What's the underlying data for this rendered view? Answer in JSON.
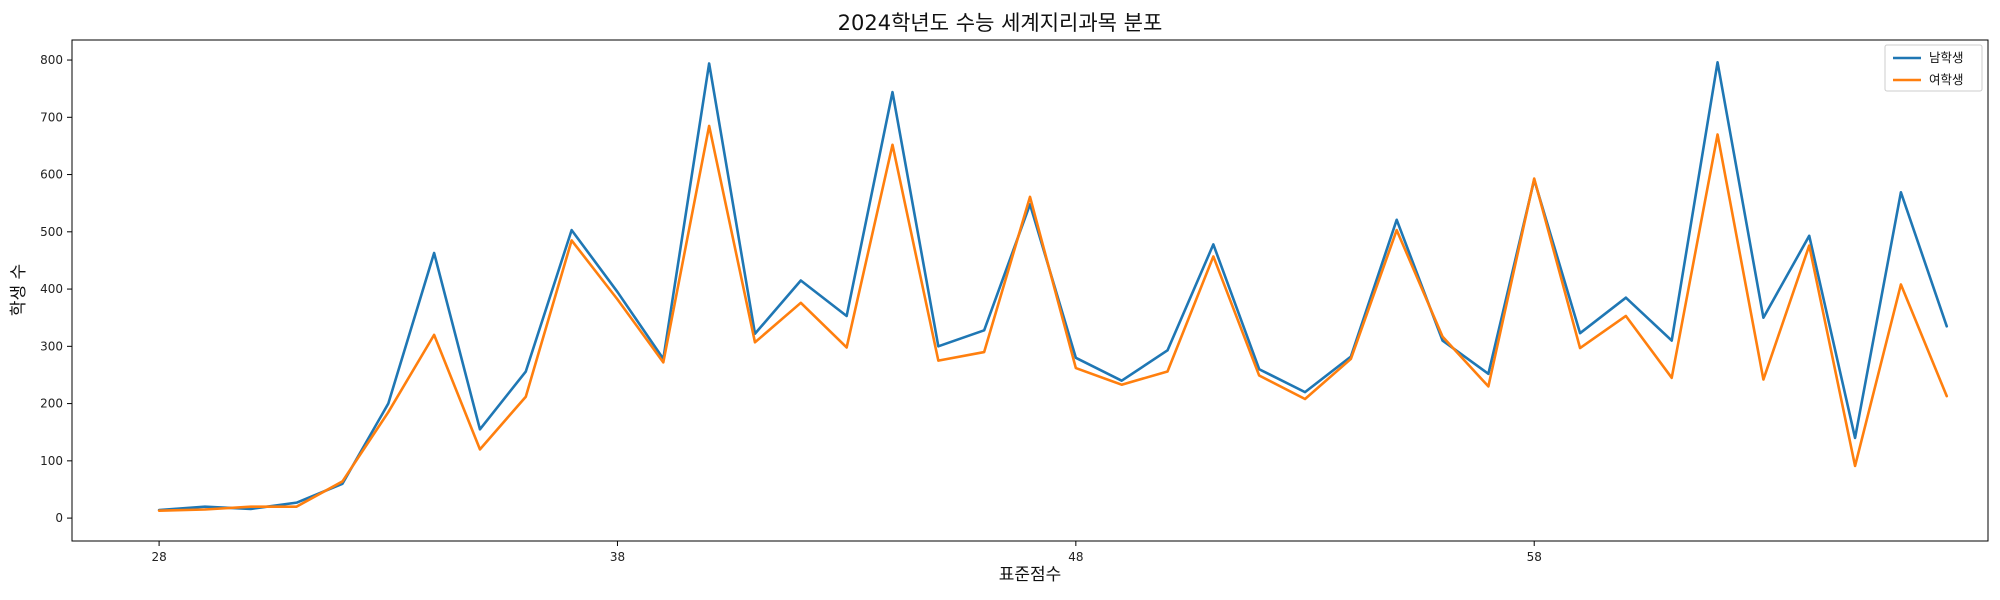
{
  "chart_data": {
    "type": "line",
    "title": "2024학년도 수능 세계지리과목 분포",
    "xlabel": "표준점수",
    "ylabel": "학생 수",
    "xlim": [
      26.1,
      67.9
    ],
    "ylim": [
      -40,
      835
    ],
    "xticks": [
      28,
      38,
      48,
      58
    ],
    "yticks": [
      0,
      100,
      200,
      300,
      400,
      500,
      600,
      700,
      800
    ],
    "grid": false,
    "legend_position": "top-right",
    "x": [
      28,
      29,
      30,
      31,
      32,
      33,
      34,
      35,
      36,
      37,
      38,
      39,
      40,
      41,
      42,
      43,
      44,
      45,
      46,
      47,
      48,
      49,
      50,
      51,
      52,
      53,
      54,
      55,
      56,
      57,
      58,
      59,
      60,
      61,
      62,
      63,
      64,
      65,
      66,
      67
    ],
    "series": [
      {
        "name": "남학생",
        "color": "#1f77b4",
        "values": [
          14,
          20,
          16,
          27,
          60,
          200,
          463,
          155,
          256,
          503,
          395,
          278,
          794,
          322,
          415,
          353,
          744,
          300,
          328,
          548,
          280,
          240,
          293,
          478,
          260,
          220,
          282,
          521,
          310,
          252,
          591,
          323,
          385,
          310,
          796,
          350,
          493,
          140,
          569,
          335
        ]
      },
      {
        "name": "여학생",
        "color": "#ff7f0e",
        "values": [
          13,
          15,
          20,
          20,
          64,
          185,
          320,
          120,
          212,
          485,
          382,
          272,
          685,
          307,
          376,
          298,
          652,
          275,
          290,
          561,
          262,
          233,
          256,
          457,
          249,
          208,
          278,
          503,
          317,
          230,
          593,
          297,
          353,
          245,
          670,
          242,
          476,
          91,
          408,
          213
        ]
      }
    ]
  }
}
